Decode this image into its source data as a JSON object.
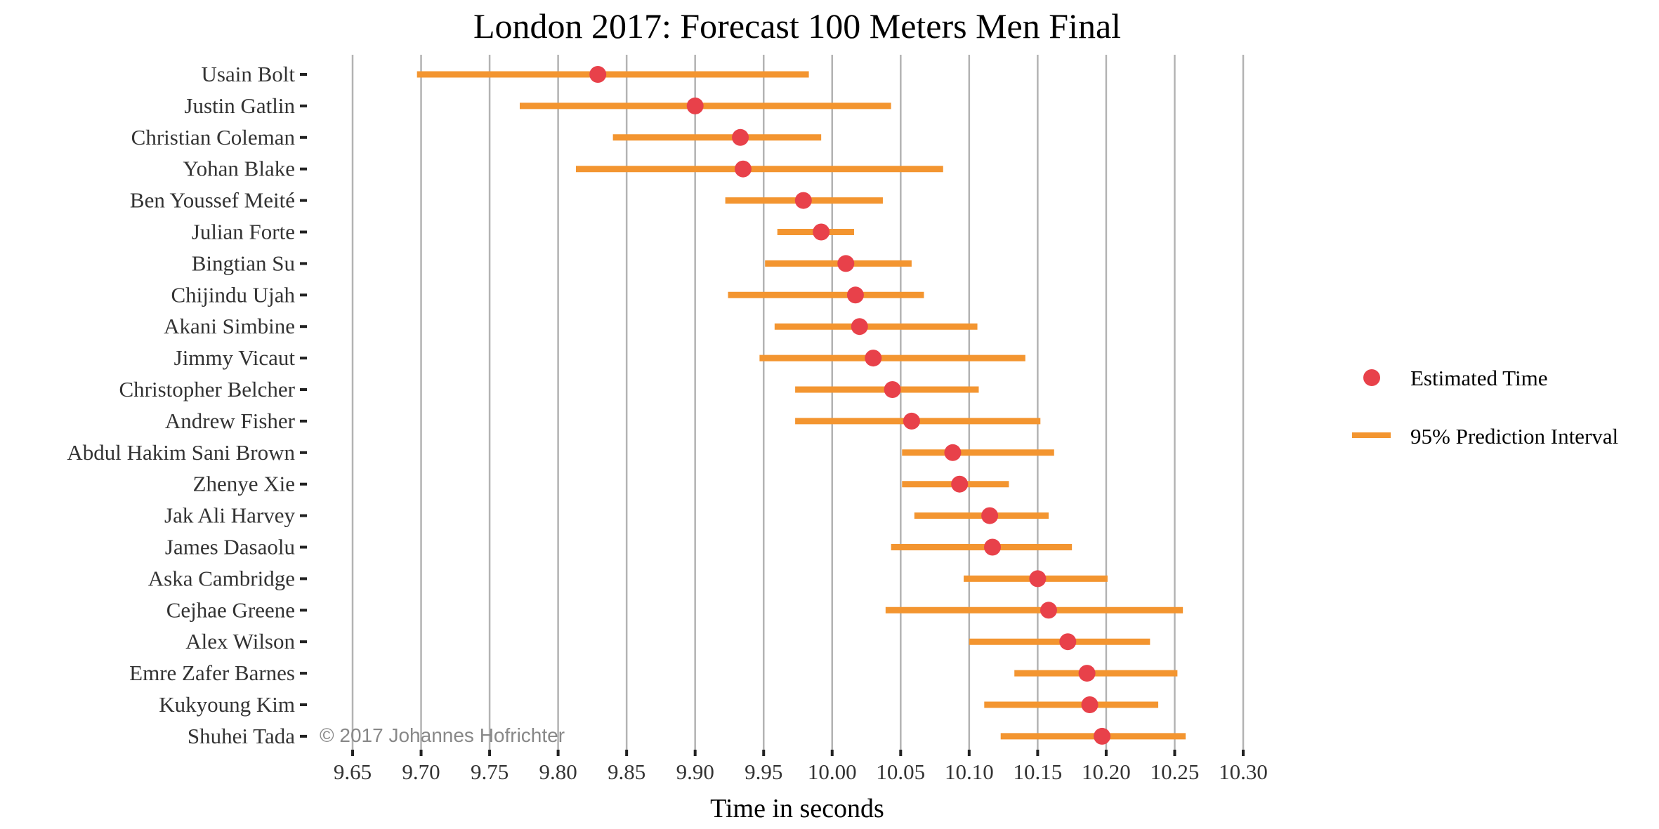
{
  "chart_data": {
    "type": "scatter",
    "subtype": "point-range",
    "title": "London 2017: Forecast 100 Meters Men Final",
    "xlabel": "Time in seconds",
    "ylabel": "",
    "xlim": [
      9.65,
      10.3
    ],
    "xticks": [
      "9.65",
      "9.70",
      "9.75",
      "9.80",
      "9.85",
      "9.90",
      "9.95",
      "10.00",
      "10.05",
      "10.10",
      "10.15",
      "10.20",
      "10.25",
      "10.30"
    ],
    "grid": "vertical",
    "legend_position": "right",
    "legend": [
      {
        "label": "Estimated Time",
        "marker": "point",
        "color": "#E8414A"
      },
      {
        "label": "95% Prediction Interval",
        "marker": "line",
        "color": "#F39530"
      }
    ],
    "annotation": "© 2017 Johannes Hofrichter",
    "athletes": [
      {
        "name": "Usain Bolt",
        "estimate": 9.829,
        "lower": 9.697,
        "upper": 9.983
      },
      {
        "name": "Justin Gatlin",
        "estimate": 9.9,
        "lower": 9.772,
        "upper": 10.043
      },
      {
        "name": "Christian Coleman",
        "estimate": 9.933,
        "lower": 9.84,
        "upper": 9.992
      },
      {
        "name": "Yohan Blake",
        "estimate": 9.935,
        "lower": 9.813,
        "upper": 10.081
      },
      {
        "name": "Ben Youssef Meité",
        "estimate": 9.979,
        "lower": 9.922,
        "upper": 10.037
      },
      {
        "name": "Julian Forte",
        "estimate": 9.992,
        "lower": 9.96,
        "upper": 10.016
      },
      {
        "name": "Bingtian Su",
        "estimate": 10.01,
        "lower": 9.951,
        "upper": 10.058
      },
      {
        "name": "Chijindu Ujah",
        "estimate": 10.017,
        "lower": 9.924,
        "upper": 10.067
      },
      {
        "name": "Akani Simbine",
        "estimate": 10.02,
        "lower": 9.958,
        "upper": 10.106
      },
      {
        "name": "Jimmy Vicaut",
        "estimate": 10.03,
        "lower": 9.947,
        "upper": 10.141
      },
      {
        "name": "Christopher Belcher",
        "estimate": 10.044,
        "lower": 9.973,
        "upper": 10.107
      },
      {
        "name": "Andrew Fisher",
        "estimate": 10.058,
        "lower": 9.973,
        "upper": 10.152
      },
      {
        "name": "Abdul Hakim Sani Brown",
        "estimate": 10.088,
        "lower": 10.051,
        "upper": 10.162
      },
      {
        "name": "Zhenye Xie",
        "estimate": 10.093,
        "lower": 10.051,
        "upper": 10.129
      },
      {
        "name": "Jak Ali Harvey",
        "estimate": 10.115,
        "lower": 10.06,
        "upper": 10.158
      },
      {
        "name": "James Dasaolu",
        "estimate": 10.117,
        "lower": 10.043,
        "upper": 10.175
      },
      {
        "name": "Aska Cambridge",
        "estimate": 10.15,
        "lower": 10.096,
        "upper": 10.201
      },
      {
        "name": "Cejhae Greene",
        "estimate": 10.158,
        "lower": 10.039,
        "upper": 10.256
      },
      {
        "name": "Alex Wilson",
        "estimate": 10.172,
        "lower": 10.1,
        "upper": 10.232
      },
      {
        "name": "Emre Zafer Barnes",
        "estimate": 10.186,
        "lower": 10.133,
        "upper": 10.252
      },
      {
        "name": "Kukyoung Kim",
        "estimate": 10.188,
        "lower": 10.111,
        "upper": 10.238
      },
      {
        "name": "Shuhei Tada",
        "estimate": 10.197,
        "lower": 10.123,
        "upper": 10.258
      }
    ],
    "colors": {
      "point": "#E8414A",
      "interval": "#F39530",
      "grid": "#B3B3B3",
      "tick": "#222222"
    }
  }
}
